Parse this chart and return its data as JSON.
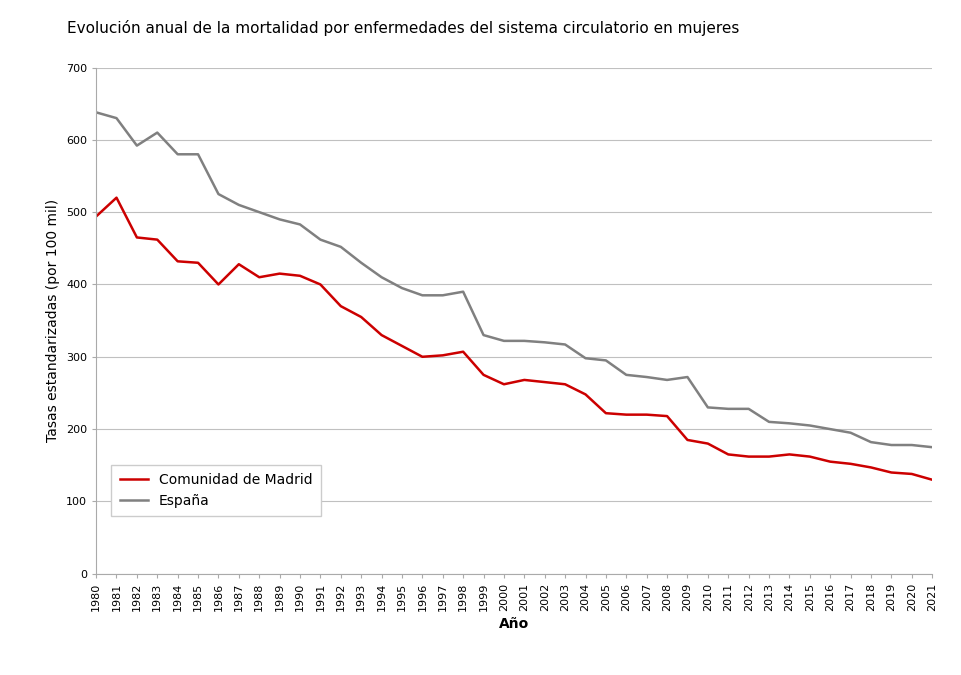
{
  "title": "Evolución anual de la mortalidad por enfermedades del sistema circulatorio en mujeres",
  "xlabel": "Año",
  "ylabel": "Tasas estandarizadas (por 100 mil)",
  "years": [
    1980,
    1981,
    1982,
    1983,
    1984,
    1985,
    1986,
    1987,
    1988,
    1989,
    1990,
    1991,
    1992,
    1993,
    1994,
    1995,
    1996,
    1997,
    1998,
    1999,
    2000,
    2001,
    2002,
    2003,
    2004,
    2005,
    2006,
    2007,
    2008,
    2009,
    2010,
    2011,
    2012,
    2013,
    2014,
    2015,
    2016,
    2017,
    2018,
    2019,
    2020,
    2021
  ],
  "madrid": [
    494,
    520,
    465,
    462,
    432,
    430,
    400,
    428,
    410,
    415,
    412,
    400,
    370,
    355,
    330,
    315,
    300,
    302,
    307,
    275,
    262,
    268,
    265,
    262,
    248,
    222,
    220,
    220,
    218,
    185,
    180,
    165,
    162,
    162,
    165,
    162,
    155,
    152,
    147,
    140,
    138,
    130
  ],
  "espana": [
    638,
    630,
    592,
    610,
    580,
    580,
    525,
    510,
    500,
    490,
    483,
    462,
    452,
    430,
    410,
    395,
    385,
    385,
    390,
    330,
    322,
    322,
    320,
    317,
    298,
    295,
    275,
    272,
    268,
    272,
    230,
    228,
    228,
    210,
    208,
    205,
    200,
    195,
    182,
    178,
    178,
    175
  ],
  "madrid_color": "#cc0000",
  "espana_color": "#808080",
  "ylim": [
    0,
    700
  ],
  "yticks": [
    0,
    100,
    200,
    300,
    400,
    500,
    600,
    700
  ],
  "legend_madrid": "Comunidad de Madrid",
  "legend_espana": "España",
  "bg_color": "#ffffff",
  "grid_color": "#c0c0c0",
  "line_width": 1.8,
  "title_fontsize": 11,
  "axis_label_fontsize": 10,
  "tick_fontsize": 8,
  "legend_fontsize": 10
}
